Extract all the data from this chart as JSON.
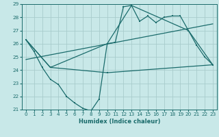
{
  "bg_color": "#c8e8e8",
  "grid_color": "#a8cccc",
  "line_color": "#1a6b6b",
  "xlabel": "Humidex (Indice chaleur)",
  "xlim": [
    -0.5,
    23.5
  ],
  "ylim": [
    21,
    29
  ],
  "yticks": [
    21,
    22,
    23,
    24,
    25,
    26,
    27,
    28,
    29
  ],
  "xticks": [
    0,
    1,
    2,
    3,
    4,
    5,
    6,
    7,
    8,
    9,
    10,
    11,
    12,
    13,
    14,
    15,
    16,
    17,
    18,
    19,
    20,
    21,
    22,
    23
  ],
  "line1_x": [
    0,
    1,
    2,
    3,
    4,
    5,
    6,
    7,
    8,
    9,
    10,
    11,
    12,
    13,
    14,
    15,
    16,
    17,
    18,
    19,
    20,
    21,
    22,
    23
  ],
  "line1_y": [
    26.3,
    25.4,
    24.2,
    23.3,
    22.9,
    22.0,
    21.5,
    21.1,
    20.9,
    21.8,
    26.0,
    26.1,
    28.8,
    28.9,
    27.7,
    28.1,
    27.6,
    28.0,
    28.1,
    28.1,
    27.0,
    25.9,
    25.0,
    24.4
  ],
  "line2_x": [
    0,
    3,
    10,
    13,
    20,
    23
  ],
  "line2_y": [
    26.3,
    24.2,
    26.0,
    28.9,
    27.0,
    24.4
  ],
  "line3_x": [
    0,
    3,
    10,
    23
  ],
  "line3_y": [
    26.3,
    24.2,
    23.8,
    24.4
  ],
  "line4_x": [
    0,
    23
  ],
  "line4_y": [
    24.8,
    27.5
  ]
}
